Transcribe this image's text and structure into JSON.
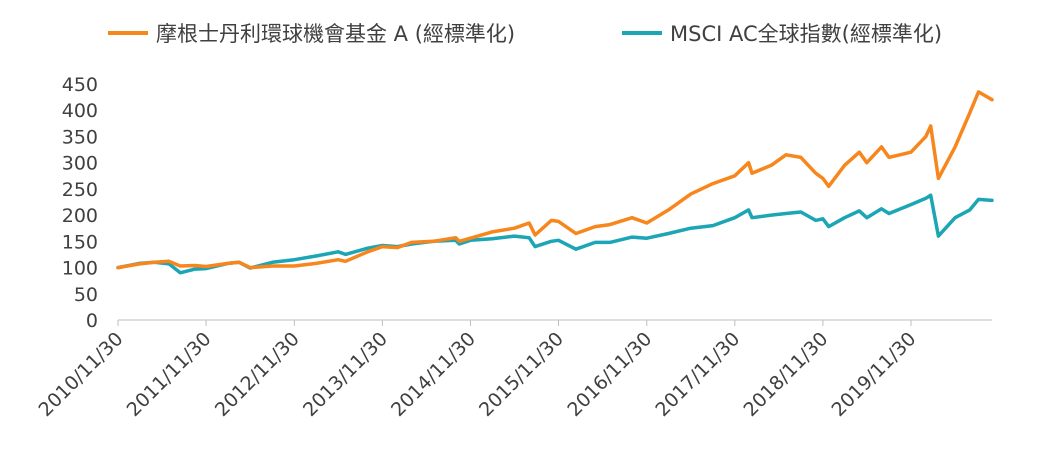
{
  "chart_data": {
    "type": "line",
    "title": "",
    "xlabel": "",
    "ylabel": "",
    "ylim": [
      0,
      450
    ],
    "yticks": [
      0,
      50,
      100,
      150,
      200,
      250,
      300,
      350,
      400,
      450
    ],
    "xlim": [
      "2010/11/30",
      "2020/10/31"
    ],
    "xticks": [
      "2010/11/30",
      "2011/11/30",
      "2012/11/30",
      "2013/11/30",
      "2014/11/30",
      "2015/11/30",
      "2016/11/30",
      "2017/11/30",
      "2018/11/30",
      "2019/11/30"
    ],
    "grid": false,
    "legend": "top",
    "series": [
      {
        "name": "摩根士丹利環球機會基金 A (經標準化)",
        "color": "#F7861D",
        "points": [
          [
            "2010/11/30",
            100
          ],
          [
            "2011/02/28",
            107
          ],
          [
            "2011/04/30",
            110
          ],
          [
            "2011/06/30",
            112
          ],
          [
            "2011/08/15",
            103
          ],
          [
            "2011/10/15",
            104
          ],
          [
            "2011/11/30",
            102
          ],
          [
            "2012/02/28",
            108
          ],
          [
            "2012/04/15",
            110
          ],
          [
            "2012/05/31",
            100
          ],
          [
            "2012/08/31",
            103
          ],
          [
            "2012/11/30",
            103
          ],
          [
            "2013/02/28",
            108
          ],
          [
            "2013/05/31",
            115
          ],
          [
            "2013/06/30",
            112
          ],
          [
            "2013/09/30",
            130
          ],
          [
            "2013/11/30",
            140
          ],
          [
            "2014/01/31",
            138
          ],
          [
            "2014/03/31",
            148
          ],
          [
            "2014/06/30",
            150
          ],
          [
            "2014/09/30",
            157
          ],
          [
            "2014/10/15",
            150
          ],
          [
            "2014/11/30",
            156
          ],
          [
            "2015/02/28",
            168
          ],
          [
            "2015/05/31",
            175
          ],
          [
            "2015/07/31",
            185
          ],
          [
            "2015/08/25",
            162
          ],
          [
            "2015/10/31",
            190
          ],
          [
            "2015/11/30",
            188
          ],
          [
            "2016/02/10",
            165
          ],
          [
            "2016/04/30",
            178
          ],
          [
            "2016/06/30",
            182
          ],
          [
            "2016/09/30",
            195
          ],
          [
            "2016/11/30",
            185
          ],
          [
            "2017/02/28",
            210
          ],
          [
            "2017/05/31",
            240
          ],
          [
            "2017/08/31",
            260
          ],
          [
            "2017/11/30",
            275
          ],
          [
            "2018/01/26",
            300
          ],
          [
            "2018/02/09",
            280
          ],
          [
            "2018/04/30",
            295
          ],
          [
            "2018/06/30",
            315
          ],
          [
            "2018/08/31",
            310
          ],
          [
            "2018/10/31",
            280
          ],
          [
            "2018/11/30",
            270
          ],
          [
            "2018/12/24",
            255
          ],
          [
            "2019/02/28",
            295
          ],
          [
            "2019/04/30",
            320
          ],
          [
            "2019/05/31",
            300
          ],
          [
            "2019/07/31",
            330
          ],
          [
            "2019/08/31",
            310
          ],
          [
            "2019/11/30",
            320
          ],
          [
            "2020/01/31",
            350
          ],
          [
            "2020/02/20",
            370
          ],
          [
            "2020/03/23",
            270
          ],
          [
            "2020/05/31",
            330
          ],
          [
            "2020/07/31",
            395
          ],
          [
            "2020/09/05",
            435
          ],
          [
            "2020/10/31",
            420
          ]
        ]
      },
      {
        "name": "MSCI AC全球指數(經標準化)",
        "color": "#1BA5B5",
        "points": [
          [
            "2010/11/30",
            100
          ],
          [
            "2011/02/28",
            108
          ],
          [
            "2011/04/30",
            110
          ],
          [
            "2011/06/30",
            107
          ],
          [
            "2011/08/15",
            90
          ],
          [
            "2011/10/15",
            97
          ],
          [
            "2011/11/30",
            98
          ],
          [
            "2012/02/28",
            108
          ],
          [
            "2012/04/15",
            110
          ],
          [
            "2012/05/31",
            99
          ],
          [
            "2012/08/31",
            110
          ],
          [
            "2012/11/30",
            115
          ],
          [
            "2013/02/28",
            122
          ],
          [
            "2013/05/31",
            130
          ],
          [
            "2013/06/30",
            125
          ],
          [
            "2013/09/30",
            137
          ],
          [
            "2013/11/30",
            142
          ],
          [
            "2014/01/31",
            140
          ],
          [
            "2014/03/31",
            145
          ],
          [
            "2014/06/30",
            150
          ],
          [
            "2014/09/30",
            152
          ],
          [
            "2014/10/15",
            145
          ],
          [
            "2014/11/30",
            152
          ],
          [
            "2015/02/28",
            155
          ],
          [
            "2015/05/31",
            160
          ],
          [
            "2015/07/31",
            157
          ],
          [
            "2015/08/25",
            140
          ],
          [
            "2015/10/31",
            150
          ],
          [
            "2015/11/30",
            152
          ],
          [
            "2016/02/10",
            135
          ],
          [
            "2016/04/30",
            148
          ],
          [
            "2016/06/30",
            148
          ],
          [
            "2016/09/30",
            158
          ],
          [
            "2016/11/30",
            156
          ],
          [
            "2017/02/28",
            165
          ],
          [
            "2017/05/31",
            175
          ],
          [
            "2017/08/31",
            180
          ],
          [
            "2017/11/30",
            195
          ],
          [
            "2018/01/26",
            210
          ],
          [
            "2018/02/09",
            195
          ],
          [
            "2018/04/30",
            200
          ],
          [
            "2018/06/30",
            203
          ],
          [
            "2018/08/31",
            206
          ],
          [
            "2018/10/31",
            190
          ],
          [
            "2018/11/30",
            193
          ],
          [
            "2018/12/24",
            178
          ],
          [
            "2019/02/28",
            195
          ],
          [
            "2019/04/30",
            208
          ],
          [
            "2019/05/31",
            195
          ],
          [
            "2019/07/31",
            212
          ],
          [
            "2019/08/31",
            203
          ],
          [
            "2019/11/30",
            220
          ],
          [
            "2020/01/31",
            232
          ],
          [
            "2020/02/20",
            238
          ],
          [
            "2020/03/23",
            160
          ],
          [
            "2020/05/31",
            195
          ],
          [
            "2020/07/31",
            210
          ],
          [
            "2020/09/05",
            230
          ],
          [
            "2020/10/31",
            228
          ]
        ]
      }
    ]
  }
}
